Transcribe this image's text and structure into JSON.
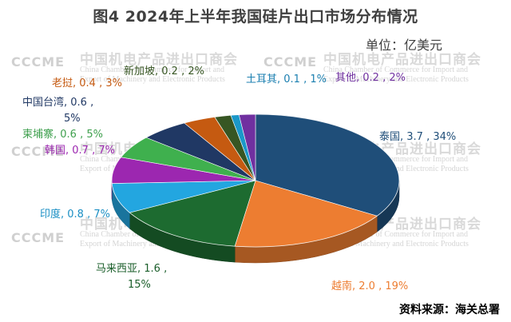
{
  "title": "图4  2024年上半年我国硅片出口市场分布情况",
  "unit": "单位：亿美元",
  "source": "资料来源：海关总署",
  "watermark": {
    "logo": "CCCME",
    "cn": "中国机电产品进出口商会",
    "en_line1": "China Chamber of Commerce for Import and",
    "en_line2": "Export of Machinery and Electronic Products"
  },
  "chart_data": {
    "type": "pie",
    "style": "3d",
    "series": [
      {
        "values": [
          {
            "label": "泰国, 3.7 , 34%",
            "name": "泰国",
            "value": 3.7,
            "percent": 34,
            "color": "#1f4e79"
          },
          {
            "label": "越南, 2.0 , 19%",
            "name": "越南",
            "value": 2.0,
            "percent": 19,
            "color": "#ed7d31"
          },
          {
            "label": "马来西亚, 1.6 , 15%",
            "name": "马来西亚",
            "value": 1.6,
            "percent": 15,
            "color": "#1d6b30"
          },
          {
            "label": "印度, 0.8 , 7%",
            "name": "印度",
            "value": 0.8,
            "percent": 7,
            "color": "#23a6e0"
          },
          {
            "label": "韩国, 0.7 , 7%",
            "name": "韩国",
            "value": 0.7,
            "percent": 7,
            "color": "#9c27b0"
          },
          {
            "label": "柬埔寨, 0.6 , 5%",
            "name": "柬埔寨",
            "value": 0.6,
            "percent": 5,
            "color": "#3fb04e"
          },
          {
            "label": "中国台湾, 0.6 , 5%",
            "name": "中国台湾",
            "value": 0.6,
            "percent": 5,
            "color": "#203864"
          },
          {
            "label": "老挝, 0.4 , 3%",
            "name": "老挝",
            "value": 0.4,
            "percent": 3,
            "color": "#c55a11"
          },
          {
            "label": "新加坡, 0.2 , 2%",
            "name": "新加坡",
            "value": 0.2,
            "percent": 2,
            "color": "#375623"
          },
          {
            "label": "土耳其, 0.1 , 1%",
            "name": "土耳其",
            "value": 0.1,
            "percent": 1,
            "color": "#1b98c9"
          },
          {
            "label": "其他, 0.2 , 2%",
            "name": "其他",
            "value": 0.2,
            "percent": 2,
            "color": "#7030a0"
          }
        ]
      }
    ]
  }
}
